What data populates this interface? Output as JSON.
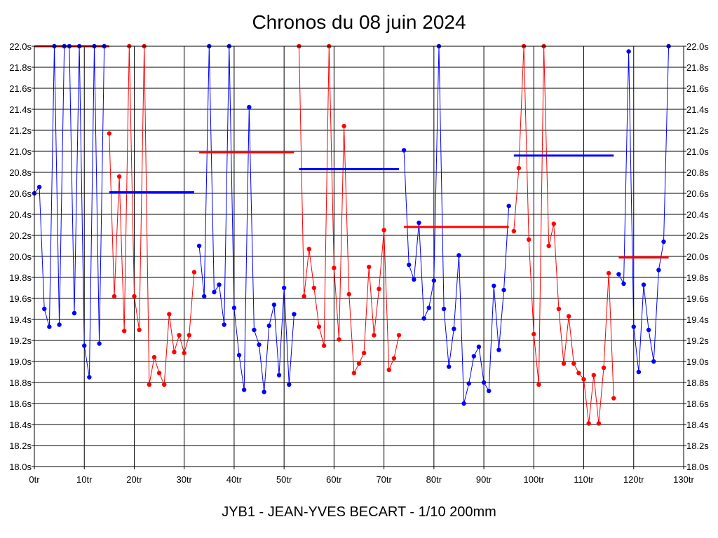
{
  "chart_data": {
    "type": "line",
    "title": "Chronos du 08 juin 2024",
    "caption": "JYB1 - JEAN-YVES BECART - 1/10 200mm",
    "xlabel": "",
    "ylabel": "",
    "xlim": [
      0,
      130
    ],
    "ylim": [
      18.0,
      22.0
    ],
    "x_ticks": [
      {
        "value": 0,
        "label": "0tr"
      },
      {
        "value": 10,
        "label": "10tr"
      },
      {
        "value": 20,
        "label": "20tr"
      },
      {
        "value": 30,
        "label": "30tr"
      },
      {
        "value": 40,
        "label": "40tr"
      },
      {
        "value": 50,
        "label": "50tr"
      },
      {
        "value": 60,
        "label": "60tr"
      },
      {
        "value": 70,
        "label": "70tr"
      },
      {
        "value": 80,
        "label": "80tr"
      },
      {
        "value": 90,
        "label": "90tr"
      },
      {
        "value": 100,
        "label": "100tr"
      },
      {
        "value": 110,
        "label": "110tr"
      },
      {
        "value": 120,
        "label": "120tr"
      },
      {
        "value": 130,
        "label": "130tr"
      }
    ],
    "y_ticks": [
      {
        "value": 18.0,
        "label": "18.0s"
      },
      {
        "value": 18.2,
        "label": "18.2s"
      },
      {
        "value": 18.4,
        "label": "18.4s"
      },
      {
        "value": 18.6,
        "label": "18.6s"
      },
      {
        "value": 18.8,
        "label": "18.8s"
      },
      {
        "value": 19.0,
        "label": "19.0s"
      },
      {
        "value": 19.2,
        "label": "19.2s"
      },
      {
        "value": 19.4,
        "label": "19.4s"
      },
      {
        "value": 19.6,
        "label": "19.6s"
      },
      {
        "value": 19.8,
        "label": "19.8s"
      },
      {
        "value": 20.0,
        "label": "20.0s"
      },
      {
        "value": 20.2,
        "label": "20.2s"
      },
      {
        "value": 20.4,
        "label": "20.4s"
      },
      {
        "value": 20.6,
        "label": "20.6s"
      },
      {
        "value": 20.8,
        "label": "20.8s"
      },
      {
        "value": 21.0,
        "label": "21.0s"
      },
      {
        "value": 21.2,
        "label": "21.2s"
      },
      {
        "value": 21.4,
        "label": "21.4s"
      },
      {
        "value": 21.6,
        "label": "21.6s"
      },
      {
        "value": 21.8,
        "label": "21.8s"
      },
      {
        "value": 22.0,
        "label": "22.0s"
      }
    ],
    "grid": true,
    "series": [
      {
        "name": "segment-1",
        "color": "#0000ff",
        "x_start": 0,
        "values": [
          20.6,
          20.66,
          19.5,
          19.33,
          22.0,
          19.35,
          22.0,
          22.0,
          19.46,
          22.0,
          19.15,
          18.85,
          22.0,
          19.17,
          22.0
        ]
      },
      {
        "name": "segment-2",
        "color": "#ff0000",
        "x_start": 15,
        "values": [
          21.17,
          19.62,
          20.76,
          19.29,
          22.0,
          19.62,
          19.3,
          22.0,
          18.78,
          19.04,
          18.89,
          18.78,
          19.45,
          19.09,
          19.25,
          19.08,
          19.25,
          19.85
        ]
      },
      {
        "name": "segment-3",
        "color": "#0000ff",
        "x_start": 33,
        "values": [
          20.1,
          19.62,
          22.0,
          19.66,
          19.73,
          19.35,
          22.0,
          19.51,
          19.06,
          18.73,
          21.42,
          19.3,
          19.16,
          18.71,
          19.34,
          19.54,
          18.87,
          19.7,
          18.78,
          19.45
        ]
      },
      {
        "name": "segment-4",
        "color": "#ff0000",
        "x_start": 53,
        "values": [
          22.0,
          19.62,
          20.07,
          19.7,
          19.33,
          19.15,
          22.0,
          19.89,
          19.21,
          21.24,
          19.64,
          18.89,
          18.98,
          19.08,
          19.9,
          19.25,
          19.69,
          20.25,
          18.92,
          19.03,
          19.25
        ]
      },
      {
        "name": "segment-5",
        "color": "#0000ff",
        "x_start": 74,
        "values": [
          21.01,
          19.92,
          19.78,
          20.32,
          19.41,
          19.51,
          19.77,
          22.0,
          19.5,
          18.95,
          19.31,
          20.01,
          18.6,
          18.79,
          19.05,
          19.14,
          18.8,
          18.72,
          19.72,
          19.11,
          19.68,
          20.48
        ]
      },
      {
        "name": "segment-6",
        "color": "#ff0000",
        "x_start": 96,
        "values": [
          20.24,
          20.84,
          22.0,
          20.16,
          19.26,
          18.78,
          22.0,
          20.1,
          20.31,
          19.5,
          18.98,
          19.43,
          18.98,
          18.89,
          18.83,
          18.41,
          18.87,
          18.41,
          18.94,
          19.84,
          18.65
        ]
      },
      {
        "name": "segment-7",
        "color": "#0000ff",
        "x_start": 117,
        "values": [
          19.83,
          19.74,
          21.95,
          19.33,
          18.9,
          19.73,
          19.3,
          19.0,
          19.87,
          20.14,
          22.0
        ]
      }
    ],
    "averages": [
      {
        "color": "#ff0000",
        "x_from": 0,
        "x_to": 15,
        "value": 22.0
      },
      {
        "color": "#0000ff",
        "x_from": 15,
        "x_to": 32,
        "value": 20.61
      },
      {
        "color": "#ff0000",
        "x_from": 33,
        "x_to": 52,
        "value": 20.99
      },
      {
        "color": "#0000ff",
        "x_from": 53,
        "x_to": 73,
        "value": 20.83
      },
      {
        "color": "#ff0000",
        "x_from": 74,
        "x_to": 95,
        "value": 20.28
      },
      {
        "color": "#0000ff",
        "x_from": 96,
        "x_to": 116,
        "value": 20.96
      },
      {
        "color": "#ff0000",
        "x_from": 117,
        "x_to": 127,
        "value": 19.99
      }
    ]
  }
}
